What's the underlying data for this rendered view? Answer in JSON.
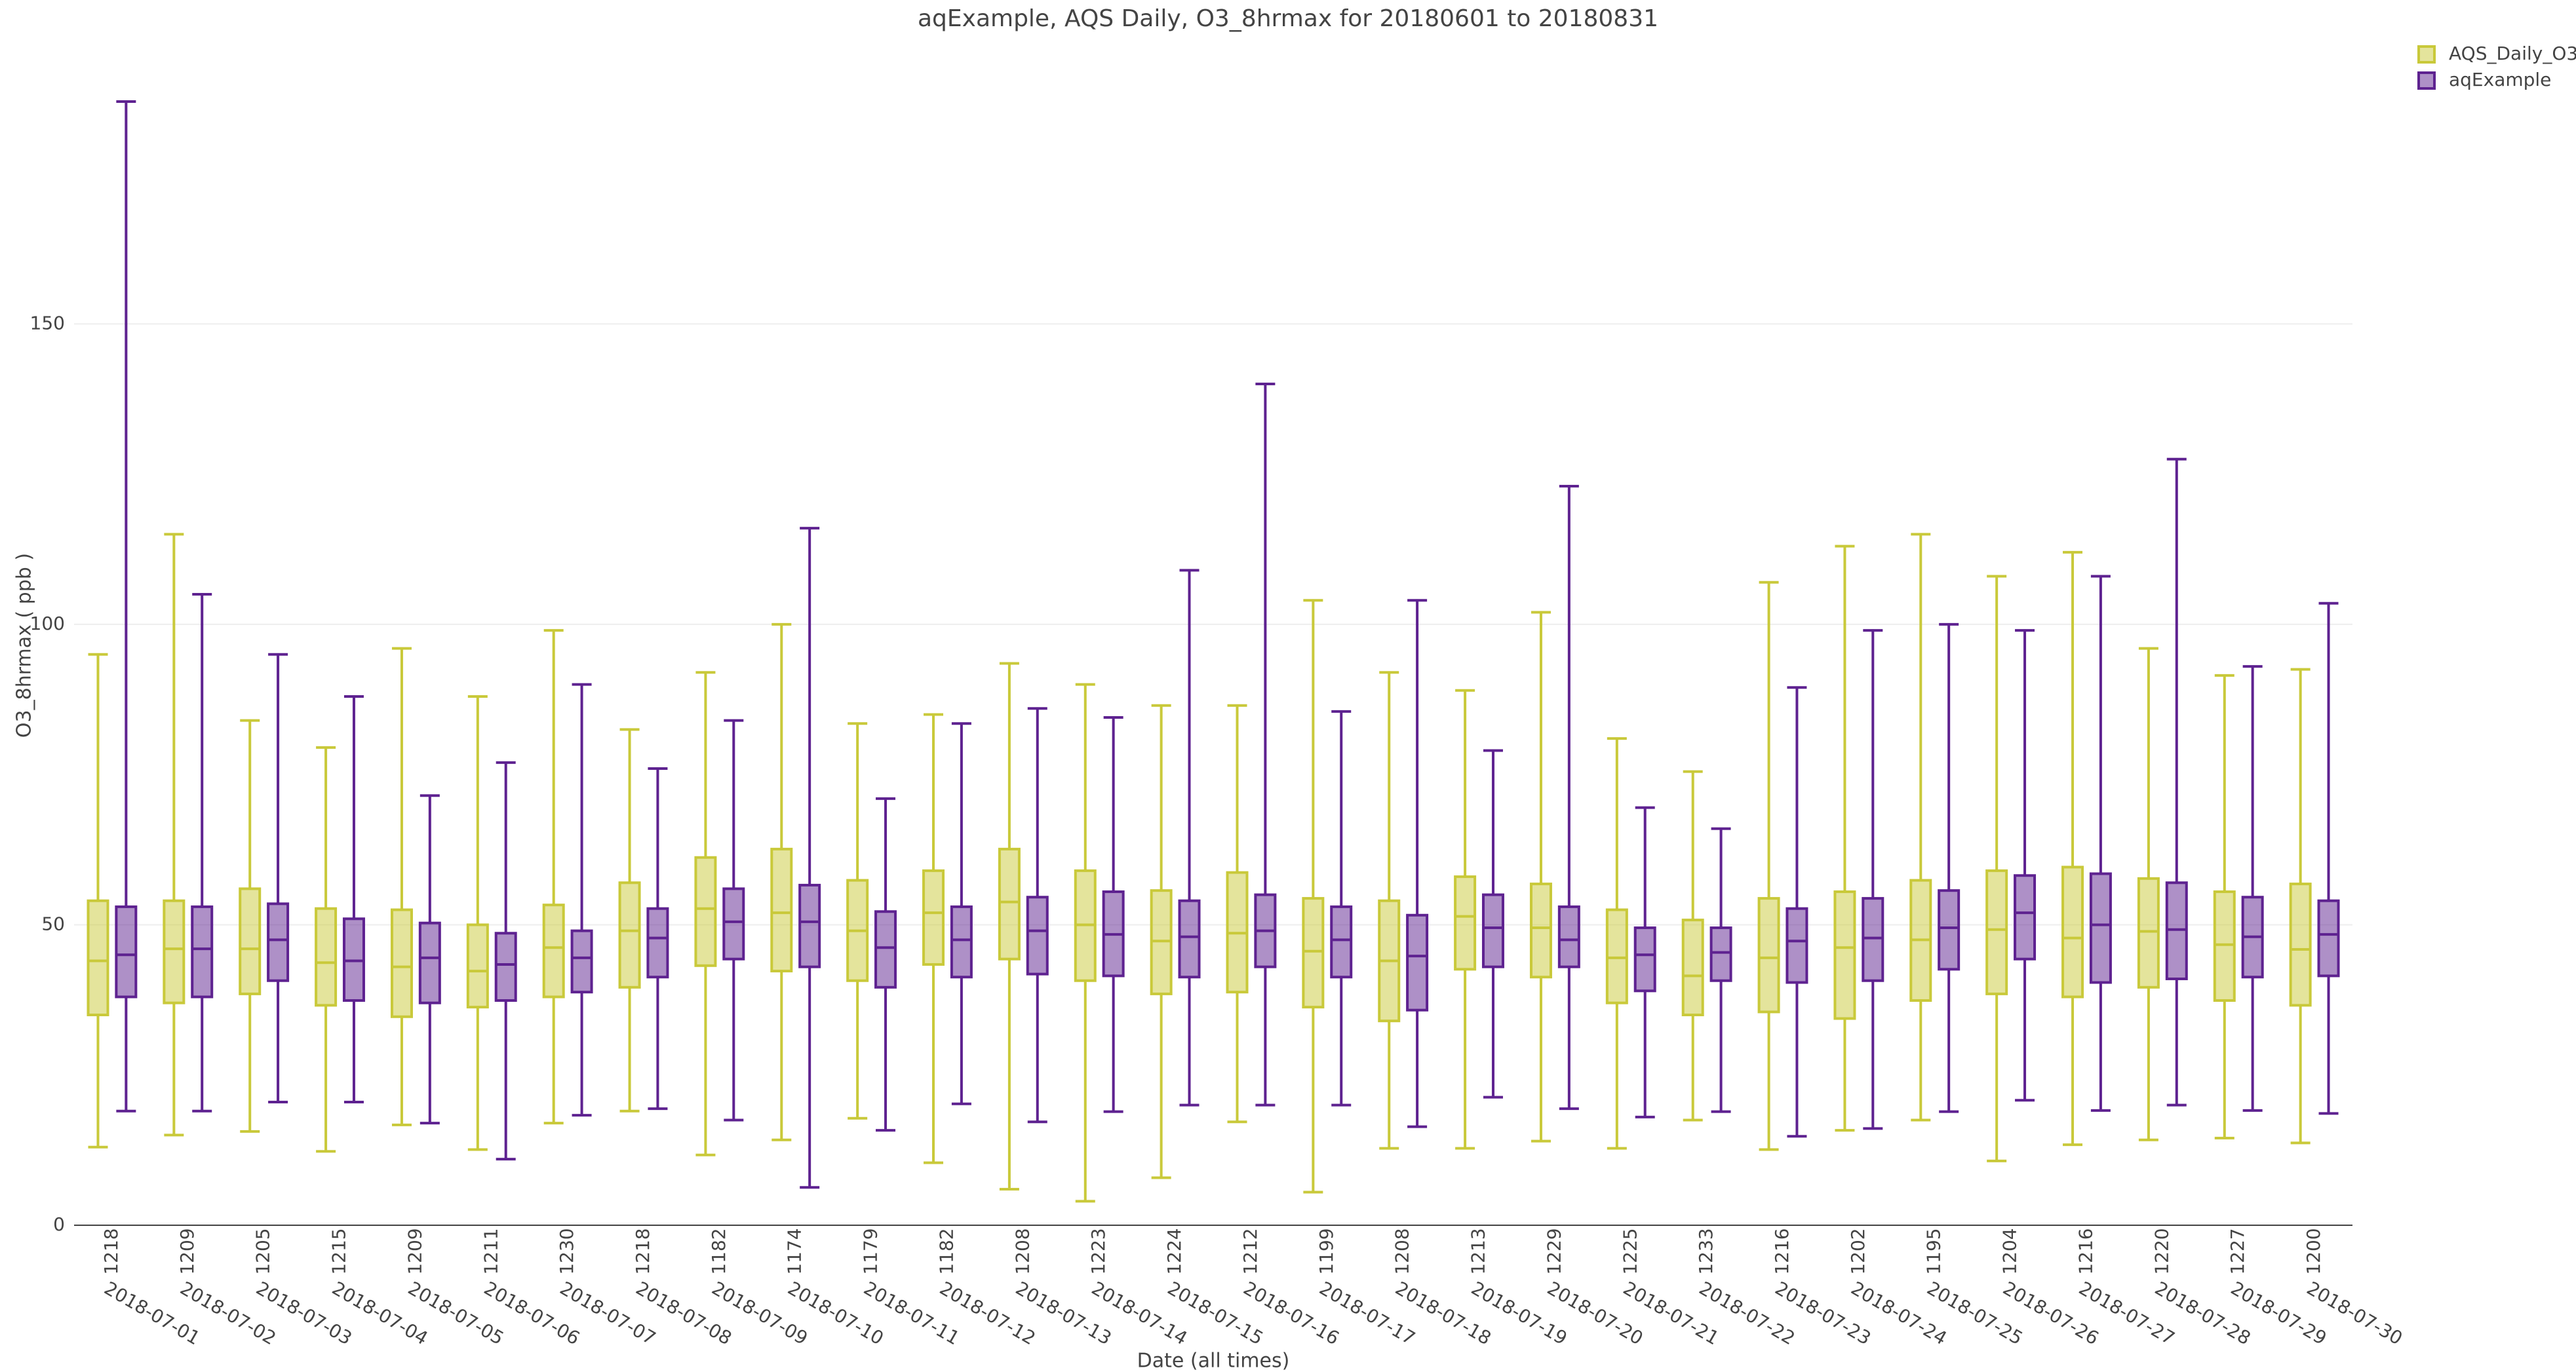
{
  "chart_data": {
    "type": "box",
    "title": "aqExample, AQS Daily, O3_8hrmax for 20180601 to 20180831",
    "x_label": "Date (all times)",
    "y_label": "O3_8hrmax ( ppb )",
    "categories": [
      "2018-07-01",
      "2018-07-02",
      "2018-07-03",
      "2018-07-04",
      "2018-07-05",
      "2018-07-06",
      "2018-07-07",
      "2018-07-08",
      "2018-07-09",
      "2018-07-10",
      "2018-07-11",
      "2018-07-12",
      "2018-07-13",
      "2018-07-14",
      "2018-07-15",
      "2018-07-16",
      "2018-07-17",
      "2018-07-18",
      "2018-07-19",
      "2018-07-20",
      "2018-07-21",
      "2018-07-22",
      "2018-07-23",
      "2018-07-24",
      "2018-07-25",
      "2018-07-26",
      "2018-07-27",
      "2018-07-28",
      "2018-07-29",
      "2018-07-30"
    ],
    "counts": [
      1218,
      1209,
      1205,
      1215,
      1209,
      1211,
      1230,
      1218,
      1182,
      1174,
      1179,
      1182,
      1208,
      1223,
      1224,
      1212,
      1199,
      1208,
      1213,
      1229,
      1225,
      1233,
      1216,
      1202,
      1195,
      1204,
      1216,
      1220,
      1227,
      1200
    ],
    "ylim": [
      0,
      193
    ],
    "yticks": [
      0,
      50,
      100,
      150
    ],
    "grid": true,
    "legend": "top-right",
    "series": [
      {
        "name": "AQS_Daily_O3",
        "color": "#c9c93a",
        "min": [
          13,
          15,
          15.6,
          12.3,
          16.7,
          12.6,
          17,
          19,
          11.7,
          14.2,
          17.8,
          10.4,
          6,
          4,
          7.9,
          17.2,
          5.5,
          12.8,
          12.8,
          14,
          12.8,
          17.5,
          12.6,
          15.8,
          17.5,
          10.7,
          13.4,
          14.2,
          14.5,
          13.7
        ],
        "q1": [
          35,
          37,
          38.5,
          36.6,
          34.7,
          36.3,
          38,
          39.6,
          43.2,
          42.3,
          40.7,
          43.4,
          44.3,
          40.7,
          38.5,
          38.8,
          36.3,
          34,
          42.6,
          41.3,
          37,
          35,
          35.5,
          34.4,
          37.4,
          38.5,
          38,
          39.6,
          37.4,
          36.6
        ],
        "median": [
          44,
          46,
          46,
          43.7,
          43,
          42.3,
          46.2,
          49,
          52.7,
          52,
          49,
          52,
          53.8,
          50,
          47.3,
          48.6,
          45.6,
          44,
          51.4,
          49.5,
          44.5,
          41.5,
          44.5,
          46.2,
          47.5,
          49.2,
          47.8,
          48.9,
          46.7,
          45.9
        ],
        "q3": [
          54,
          54,
          56,
          52.7,
          52.5,
          50,
          53.3,
          57,
          61.2,
          62.6,
          57.4,
          59,
          62.6,
          59,
          55.7,
          58.7,
          54.4,
          54,
          58,
          56.8,
          52.5,
          50.8,
          54.4,
          55.5,
          57.4,
          59,
          59.6,
          57.7,
          55.5,
          56.8
        ],
        "max": [
          95,
          115,
          84,
          79.5,
          96,
          88,
          99,
          82.5,
          92,
          100,
          83.5,
          85,
          93.5,
          90,
          86.5,
          86.5,
          104,
          92,
          89,
          102,
          81,
          75.5,
          107,
          113,
          115,
          108,
          112,
          96,
          91.5,
          92.5
        ]
      },
      {
        "name": "aqExample",
        "color": "#5e2290",
        "min": [
          19,
          19,
          20.5,
          20.5,
          17,
          11,
          18.3,
          19.4,
          17.5,
          6.3,
          15.8,
          20.2,
          17.2,
          18.9,
          20,
          20,
          20,
          16.4,
          21.3,
          19.4,
          18,
          18.9,
          14.8,
          16.1,
          18.9,
          20.8,
          19.1,
          20,
          19.1,
          18.6
        ],
        "q1": [
          38,
          38,
          40.7,
          37.4,
          37,
          37.4,
          38.8,
          41.3,
          44.3,
          43,
          39.6,
          41.3,
          41.8,
          41.5,
          41.3,
          43,
          41.3,
          35.8,
          43,
          43,
          39,
          40.7,
          40.4,
          40.7,
          42.6,
          44.3,
          40.4,
          41,
          41.3,
          41.5
        ],
        "median": [
          45,
          46,
          47.5,
          44,
          44.5,
          43.4,
          44.5,
          47.8,
          50.5,
          50.5,
          46.2,
          47.5,
          49,
          48.4,
          48,
          49,
          47.5,
          44.8,
          49.5,
          47.5,
          45,
          45.4,
          47.3,
          47.8,
          49.5,
          52,
          50,
          49.2,
          48,
          48.4
        ],
        "q3": [
          53,
          53,
          53.5,
          51,
          50.3,
          48.6,
          49,
          52.7,
          56,
          56.6,
          52.2,
          53,
          54.6,
          55.5,
          54,
          55,
          53,
          51.6,
          55,
          53,
          49.5,
          49.5,
          52.7,
          54.4,
          55.7,
          58.2,
          58.5,
          57,
          54.6,
          54
        ],
        "max": [
          187,
          105,
          95,
          88,
          71.5,
          77,
          90,
          76,
          84,
          116,
          71,
          83.5,
          86,
          84.5,
          109,
          140,
          85.5,
          104,
          79,
          123,
          69.5,
          66,
          89.5,
          99,
          100,
          99,
          108,
          127.5,
          93,
          103.5
        ]
      }
    ]
  }
}
